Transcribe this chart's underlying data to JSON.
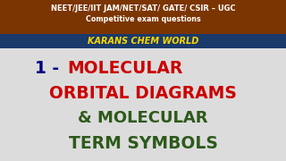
{
  "header_bg": "#7B3500",
  "header_text1": "NEET/JEE/IIT JAM/NET/SAT/ GATE/ CSIR – UGC",
  "header_text2": "Competitive exam questions",
  "header_text1_color": "#FFFFFF",
  "header_text2_color": "#FFFFFF",
  "blue_bar_color": "#1A3A6B",
  "karans_text": "KARANS CHEM WORLD",
  "karans_color": "#FFD700",
  "body_bg": "#DCDCDC",
  "line1_part1": "1 - ",
  "line1_part2": "MOLECULAR",
  "line1_color1": "#000080",
  "line1_color2": "#CC0000",
  "line2": "ORBITAL DIAGRAMS",
  "line2_color": "#CC0000",
  "line3": "& MOLECULAR",
  "line3_color": "#2D5A1B",
  "line4": "TERM SYMBOLS",
  "line4_color": "#2D5A1B",
  "figsize": [
    3.2,
    1.8
  ],
  "dpi": 100
}
